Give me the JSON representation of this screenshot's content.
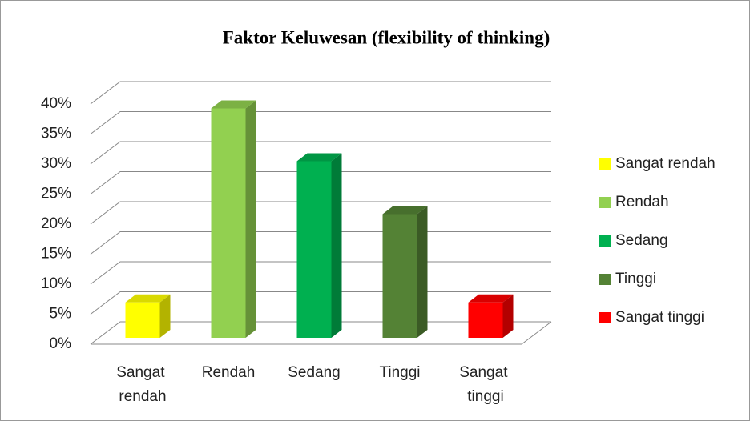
{
  "chart_data": {
    "type": "bar3d",
    "title": "Faktor Keluwesan (flexibility of thinking)",
    "categories": [
      "Sangat rendah",
      "Rendah",
      "Sedang",
      "Tinggi",
      "Sangat tinggi"
    ],
    "values": [
      5.9,
      38.2,
      29.4,
      20.6,
      5.9
    ],
    "colors": [
      "#ffff00",
      "#92d050",
      "#00b050",
      "#548235",
      "#ff0000"
    ],
    "ylim": [
      0,
      40
    ],
    "yticks": [
      {
        "value": 0,
        "label": "0%"
      },
      {
        "value": 5,
        "label": "5%"
      },
      {
        "value": 10,
        "label": "10%"
      },
      {
        "value": 15,
        "label": "15%"
      },
      {
        "value": 20,
        "label": "20%"
      },
      {
        "value": 25,
        "label": "25%"
      },
      {
        "value": 30,
        "label": "30%"
      },
      {
        "value": 35,
        "label": "35%"
      },
      {
        "value": 40,
        "label": "40%"
      }
    ],
    "grid": true,
    "legend": "right"
  }
}
